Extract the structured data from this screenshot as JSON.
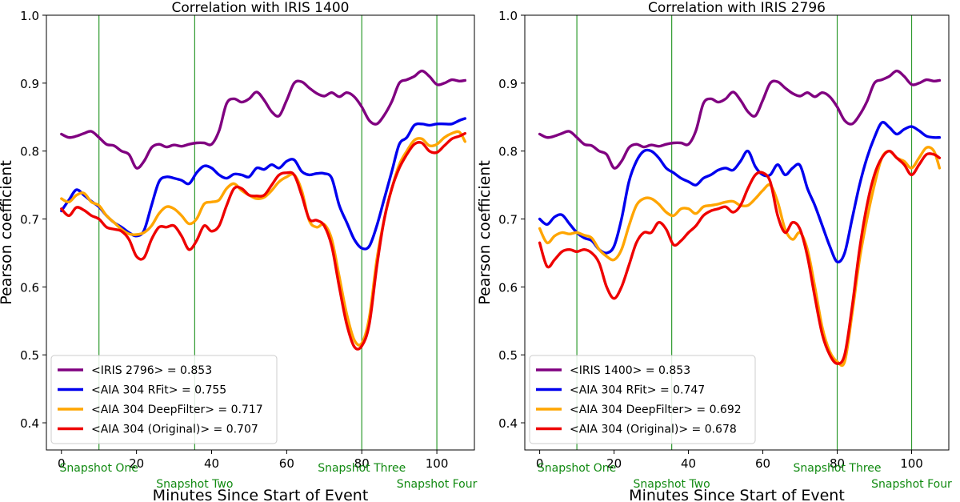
{
  "chart_data": [
    {
      "type": "line",
      "title": "Correlation with IRIS 1400",
      "xlabel": "Minutes Since Start of Event",
      "ylabel": "Pearson coefficient",
      "xlim": [
        -4,
        110
      ],
      "ylim": [
        0.36,
        1.0
      ],
      "xticks": [
        0,
        20,
        40,
        60,
        80,
        100
      ],
      "yticks": [
        0.4,
        0.5,
        0.6,
        0.7,
        0.8,
        0.9,
        1.0
      ],
      "ytick_labels": [
        "0.4",
        "0.5",
        "0.6",
        "0.7",
        "0.8",
        "0.9",
        "1.0"
      ],
      "legend_position": "lower-left",
      "vlines": [
        {
          "x": 10,
          "label": "Snapshot One",
          "row": 1
        },
        {
          "x": 35.5,
          "label": "Snapshot Two",
          "row": 2
        },
        {
          "x": 80,
          "label": "Snapshot Three",
          "row": 1
        },
        {
          "x": 100,
          "label": "Snapshot Four",
          "row": 2
        }
      ],
      "series": [
        {
          "name": "<IRIS 2796> = 0.853",
          "color": "#800080",
          "x": [
            0,
            2,
            4,
            6,
            8,
            10,
            12,
            14,
            16,
            18,
            20,
            22,
            24,
            26,
            28,
            30,
            32,
            34,
            36,
            38,
            40,
            42,
            44,
            46,
            48,
            50,
            52,
            54,
            56,
            58,
            60,
            62,
            64,
            66,
            68,
            70,
            72,
            74,
            76,
            78,
            80,
            82,
            84,
            86,
            88,
            90,
            92,
            94,
            96,
            98,
            100,
            102,
            104,
            106,
            107.5
          ],
          "y": [
            0.825,
            0.82,
            0.822,
            0.826,
            0.829,
            0.82,
            0.81,
            0.808,
            0.8,
            0.795,
            0.775,
            0.785,
            0.805,
            0.81,
            0.806,
            0.809,
            0.807,
            0.81,
            0.812,
            0.812,
            0.81,
            0.83,
            0.87,
            0.877,
            0.872,
            0.877,
            0.887,
            0.875,
            0.858,
            0.852,
            0.875,
            0.9,
            0.902,
            0.893,
            0.885,
            0.881,
            0.886,
            0.88,
            0.886,
            0.88,
            0.865,
            0.845,
            0.84,
            0.853,
            0.873,
            0.9,
            0.905,
            0.91,
            0.918,
            0.91,
            0.898,
            0.9,
            0.905,
            0.903,
            0.904
          ]
        },
        {
          "name": "<AIA 304 RFit> = 0.755",
          "color": "#0000ee",
          "x": [
            0,
            2,
            4,
            6,
            8,
            10,
            12,
            14,
            16,
            18,
            20,
            22,
            24,
            26,
            28,
            30,
            32,
            34,
            36,
            38,
            40,
            42,
            44,
            46,
            48,
            50,
            52,
            54,
            56,
            58,
            60,
            62,
            64,
            66,
            68,
            70,
            72,
            74,
            76,
            78,
            80,
            82,
            84,
            86,
            88,
            90,
            92,
            94,
            96,
            98,
            100,
            102,
            104,
            106,
            107.5
          ],
          "y": [
            0.712,
            0.728,
            0.743,
            0.735,
            0.726,
            0.718,
            0.705,
            0.695,
            0.688,
            0.68,
            0.675,
            0.683,
            0.72,
            0.755,
            0.762,
            0.76,
            0.757,
            0.752,
            0.768,
            0.778,
            0.775,
            0.765,
            0.76,
            0.766,
            0.765,
            0.762,
            0.775,
            0.773,
            0.78,
            0.775,
            0.785,
            0.787,
            0.77,
            0.765,
            0.767,
            0.767,
            0.76,
            0.72,
            0.695,
            0.67,
            0.657,
            0.66,
            0.69,
            0.73,
            0.77,
            0.81,
            0.82,
            0.838,
            0.84,
            0.838,
            0.84,
            0.84,
            0.84,
            0.845,
            0.848
          ]
        },
        {
          "name": "<AIA 304 DeepFilter> = 0.717",
          "color": "#ffa500",
          "x": [
            0,
            2,
            4,
            6,
            8,
            10,
            12,
            14,
            16,
            18,
            20,
            22,
            24,
            26,
            28,
            30,
            32,
            34,
            36,
            38,
            40,
            42,
            44,
            46,
            48,
            50,
            52,
            54,
            56,
            58,
            60,
            62,
            64,
            66,
            68,
            70,
            72,
            74,
            76,
            78,
            80,
            82,
            84,
            86,
            88,
            90,
            92,
            94,
            96,
            98,
            100,
            102,
            104,
            106,
            107.5
          ],
          "y": [
            0.73,
            0.725,
            0.735,
            0.738,
            0.725,
            0.72,
            0.705,
            0.695,
            0.685,
            0.678,
            0.677,
            0.68,
            0.69,
            0.708,
            0.718,
            0.715,
            0.705,
            0.693,
            0.7,
            0.722,
            0.725,
            0.728,
            0.745,
            0.752,
            0.742,
            0.735,
            0.73,
            0.732,
            0.742,
            0.755,
            0.762,
            0.765,
            0.742,
            0.698,
            0.688,
            0.692,
            0.67,
            0.615,
            0.56,
            0.522,
            0.517,
            0.555,
            0.64,
            0.7,
            0.745,
            0.78,
            0.8,
            0.816,
            0.818,
            0.808,
            0.81,
            0.82,
            0.826,
            0.828,
            0.814
          ]
        },
        {
          "name": "<AIA 304 (Original)> = 0.707",
          "color": "#ee0000",
          "x": [
            0,
            2,
            4,
            6,
            8,
            10,
            12,
            14,
            16,
            18,
            20,
            22,
            24,
            26,
            28,
            30,
            32,
            34,
            36,
            38,
            40,
            42,
            44,
            46,
            48,
            50,
            52,
            54,
            56,
            58,
            60,
            62,
            64,
            66,
            68,
            70,
            72,
            74,
            76,
            78,
            80,
            82,
            84,
            86,
            88,
            90,
            92,
            94,
            96,
            98,
            100,
            102,
            104,
            106,
            107.5
          ],
          "y": [
            0.715,
            0.705,
            0.717,
            0.713,
            0.705,
            0.7,
            0.688,
            0.685,
            0.682,
            0.67,
            0.645,
            0.643,
            0.67,
            0.688,
            0.688,
            0.69,
            0.675,
            0.655,
            0.668,
            0.69,
            0.682,
            0.69,
            0.72,
            0.745,
            0.745,
            0.735,
            0.734,
            0.735,
            0.75,
            0.765,
            0.768,
            0.765,
            0.735,
            0.7,
            0.698,
            0.69,
            0.66,
            0.6,
            0.545,
            0.512,
            0.513,
            0.545,
            0.63,
            0.7,
            0.745,
            0.775,
            0.795,
            0.81,
            0.812,
            0.8,
            0.798,
            0.808,
            0.818,
            0.822,
            0.826
          ]
        }
      ]
    },
    {
      "type": "line",
      "title": "Correlation with IRIS 2796",
      "xlabel": "Minutes Since Start of Event",
      "ylabel": "Pearson coefficient",
      "xlim": [
        -4,
        110
      ],
      "ylim": [
        0.36,
        1.0
      ],
      "xticks": [
        0,
        20,
        40,
        60,
        80,
        100
      ],
      "yticks": [
        0.4,
        0.5,
        0.6,
        0.7,
        0.8,
        0.9,
        1.0
      ],
      "ytick_labels": [
        "0.4",
        "0.5",
        "0.6",
        "0.7",
        "0.8",
        "0.9",
        "1.0"
      ],
      "legend_position": "lower-left",
      "vlines": [
        {
          "x": 10,
          "label": "Snapshot One",
          "row": 1
        },
        {
          "x": 35.5,
          "label": "Snapshot Two",
          "row": 2
        },
        {
          "x": 80,
          "label": "Snapshot Three",
          "row": 1
        },
        {
          "x": 100,
          "label": "Snapshot Four",
          "row": 2
        }
      ],
      "series": [
        {
          "name": "<IRIS 1400> = 0.853",
          "color": "#800080",
          "x": [
            0,
            2,
            4,
            6,
            8,
            10,
            12,
            14,
            16,
            18,
            20,
            22,
            24,
            26,
            28,
            30,
            32,
            34,
            36,
            38,
            40,
            42,
            44,
            46,
            48,
            50,
            52,
            54,
            56,
            58,
            60,
            62,
            64,
            66,
            68,
            70,
            72,
            74,
            76,
            78,
            80,
            82,
            84,
            86,
            88,
            90,
            92,
            94,
            96,
            98,
            100,
            102,
            104,
            106,
            107.5
          ],
          "y": [
            0.825,
            0.82,
            0.822,
            0.826,
            0.829,
            0.82,
            0.81,
            0.808,
            0.8,
            0.795,
            0.775,
            0.785,
            0.805,
            0.81,
            0.806,
            0.809,
            0.807,
            0.81,
            0.812,
            0.812,
            0.81,
            0.83,
            0.87,
            0.877,
            0.872,
            0.877,
            0.887,
            0.875,
            0.858,
            0.852,
            0.875,
            0.9,
            0.902,
            0.893,
            0.885,
            0.881,
            0.886,
            0.88,
            0.886,
            0.88,
            0.865,
            0.845,
            0.84,
            0.853,
            0.873,
            0.9,
            0.905,
            0.91,
            0.918,
            0.91,
            0.898,
            0.9,
            0.905,
            0.903,
            0.904
          ]
        },
        {
          "name": "<AIA 304 RFit> = 0.747",
          "color": "#0000ee",
          "x": [
            0,
            2,
            4,
            6,
            8,
            10,
            12,
            14,
            16,
            18,
            20,
            22,
            24,
            26,
            28,
            30,
            32,
            34,
            36,
            38,
            40,
            42,
            44,
            46,
            48,
            50,
            52,
            54,
            56,
            58,
            60,
            62,
            64,
            66,
            68,
            70,
            72,
            74,
            76,
            78,
            80,
            82,
            84,
            86,
            88,
            90,
            92,
            94,
            96,
            98,
            100,
            102,
            104,
            106,
            107.5
          ],
          "y": [
            0.7,
            0.692,
            0.703,
            0.706,
            0.693,
            0.68,
            0.672,
            0.668,
            0.655,
            0.65,
            0.66,
            0.7,
            0.755,
            0.785,
            0.8,
            0.8,
            0.79,
            0.775,
            0.768,
            0.76,
            0.755,
            0.75,
            0.76,
            0.765,
            0.772,
            0.775,
            0.772,
            0.785,
            0.8,
            0.777,
            0.765,
            0.765,
            0.78,
            0.765,
            0.775,
            0.779,
            0.745,
            0.72,
            0.69,
            0.66,
            0.637,
            0.65,
            0.7,
            0.75,
            0.79,
            0.82,
            0.842,
            0.835,
            0.825,
            0.832,
            0.836,
            0.83,
            0.822,
            0.82,
            0.82
          ]
        },
        {
          "name": "<AIA 304 DeepFilter> = 0.692",
          "color": "#ffa500",
          "x": [
            0,
            2,
            4,
            6,
            8,
            10,
            12,
            14,
            16,
            18,
            20,
            22,
            24,
            26,
            28,
            30,
            32,
            34,
            36,
            38,
            40,
            42,
            44,
            46,
            48,
            50,
            52,
            54,
            56,
            58,
            60,
            62,
            64,
            66,
            68,
            70,
            72,
            74,
            76,
            78,
            80,
            82,
            84,
            86,
            88,
            90,
            92,
            94,
            96,
            98,
            100,
            102,
            104,
            106,
            107.5
          ],
          "y": [
            0.686,
            0.665,
            0.675,
            0.68,
            0.678,
            0.68,
            0.676,
            0.672,
            0.655,
            0.645,
            0.64,
            0.655,
            0.69,
            0.72,
            0.73,
            0.73,
            0.722,
            0.71,
            0.705,
            0.715,
            0.715,
            0.708,
            0.718,
            0.72,
            0.722,
            0.725,
            0.726,
            0.72,
            0.72,
            0.73,
            0.742,
            0.75,
            0.725,
            0.685,
            0.67,
            0.68,
            0.655,
            0.6,
            0.54,
            0.505,
            0.49,
            0.49,
            0.56,
            0.64,
            0.7,
            0.75,
            0.79,
            0.8,
            0.79,
            0.785,
            0.775,
            0.79,
            0.805,
            0.8,
            0.775
          ]
        },
        {
          "name": "<AIA 304 (Original)> = 0.678",
          "color": "#ee0000",
          "x": [
            0,
            2,
            4,
            6,
            8,
            10,
            12,
            14,
            16,
            18,
            20,
            22,
            24,
            26,
            28,
            30,
            32,
            34,
            36,
            38,
            40,
            42,
            44,
            46,
            48,
            50,
            52,
            54,
            56,
            58,
            60,
            62,
            64,
            66,
            68,
            70,
            72,
            74,
            76,
            78,
            80,
            82,
            84,
            86,
            88,
            90,
            92,
            94,
            96,
            98,
            100,
            102,
            104,
            106,
            107.5
          ],
          "y": [
            0.665,
            0.63,
            0.64,
            0.652,
            0.655,
            0.652,
            0.655,
            0.65,
            0.635,
            0.6,
            0.583,
            0.6,
            0.632,
            0.665,
            0.68,
            0.68,
            0.695,
            0.685,
            0.662,
            0.668,
            0.68,
            0.69,
            0.705,
            0.712,
            0.715,
            0.718,
            0.71,
            0.72,
            0.745,
            0.765,
            0.768,
            0.755,
            0.705,
            0.68,
            0.695,
            0.685,
            0.645,
            0.585,
            0.53,
            0.5,
            0.487,
            0.5,
            0.57,
            0.655,
            0.72,
            0.765,
            0.79,
            0.8,
            0.79,
            0.78,
            0.765,
            0.78,
            0.795,
            0.795,
            0.79
          ]
        }
      ]
    }
  ]
}
